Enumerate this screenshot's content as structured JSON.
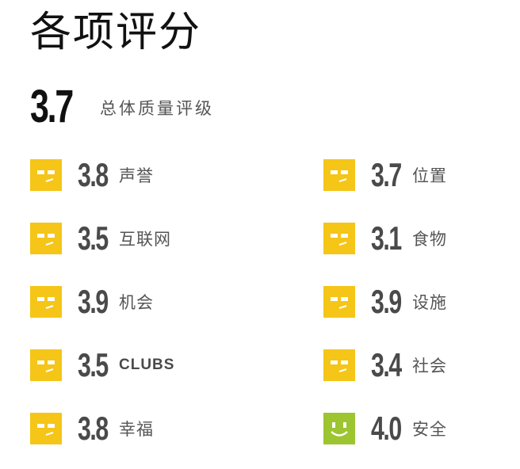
{
  "colors": {
    "average_face": "#F5C518",
    "good_face": "#9CC530",
    "score_text": "#4A4A4A",
    "label_text": "#555555"
  },
  "page": {
    "title": "各项评分"
  },
  "overall": {
    "score": "3.7",
    "label": "总体质量评级"
  },
  "ratings": {
    "left": [
      {
        "score": "3.8",
        "label": "声誉",
        "icon": "neutral-face-icon"
      },
      {
        "score": "3.5",
        "label": "互联网",
        "icon": "neutral-face-icon"
      },
      {
        "score": "3.9",
        "label": "机会",
        "icon": "neutral-face-icon"
      },
      {
        "score": "3.5",
        "label": "CLUBS",
        "icon": "neutral-face-icon"
      },
      {
        "score": "3.8",
        "label": "幸福",
        "icon": "neutral-face-icon"
      }
    ],
    "right": [
      {
        "score": "3.7",
        "label": "位置",
        "icon": "neutral-face-icon"
      },
      {
        "score": "3.1",
        "label": "食物",
        "icon": "neutral-face-icon"
      },
      {
        "score": "3.9",
        "label": "设施",
        "icon": "neutral-face-icon"
      },
      {
        "score": "3.4",
        "label": "社会",
        "icon": "neutral-face-icon"
      },
      {
        "score": "4.0",
        "label": "安全",
        "icon": "smile-face-icon"
      }
    ]
  }
}
